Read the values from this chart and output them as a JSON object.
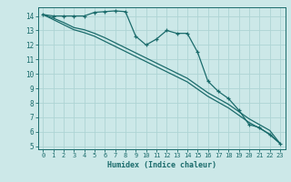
{
  "title": "",
  "xlabel": "Humidex (Indice chaleur)",
  "ylabel": "",
  "background_color": "#cce8e8",
  "grid_color": "#aed4d4",
  "line_color": "#1a6b6b",
  "xlim": [
    -0.5,
    23.5
  ],
  "ylim": [
    4.8,
    14.6
  ],
  "xticks": [
    0,
    1,
    2,
    3,
    4,
    5,
    6,
    7,
    8,
    9,
    10,
    11,
    12,
    13,
    14,
    15,
    16,
    17,
    18,
    19,
    20,
    21,
    22,
    23
  ],
  "yticks": [
    5,
    6,
    7,
    8,
    9,
    10,
    11,
    12,
    13,
    14
  ],
  "line1_x": [
    0,
    1,
    2,
    3,
    4,
    5,
    6,
    7,
    8,
    9,
    10,
    11,
    12,
    13,
    14,
    15,
    16,
    17,
    18,
    19,
    20,
    21,
    22,
    23
  ],
  "line1_y": [
    14.1,
    14.0,
    14.0,
    14.0,
    14.0,
    14.25,
    14.3,
    14.35,
    14.3,
    12.6,
    12.0,
    12.4,
    13.0,
    12.8,
    12.8,
    11.5,
    9.5,
    8.8,
    8.3,
    7.5,
    6.5,
    6.3,
    5.8,
    5.2
  ],
  "line2_x": [
    0,
    1,
    2,
    3,
    4,
    5,
    6,
    7,
    8,
    9,
    10,
    11,
    12,
    13,
    14,
    15,
    16,
    17,
    18,
    19,
    20,
    21,
    22,
    23
  ],
  "line2_y": [
    14.1,
    13.85,
    13.55,
    13.2,
    13.05,
    12.8,
    12.5,
    12.15,
    11.8,
    11.45,
    11.1,
    10.75,
    10.4,
    10.05,
    9.7,
    9.2,
    8.7,
    8.3,
    7.9,
    7.4,
    6.9,
    6.5,
    6.1,
    5.2
  ],
  "line3_x": [
    0,
    1,
    2,
    3,
    4,
    5,
    6,
    7,
    8,
    9,
    10,
    11,
    12,
    13,
    14,
    15,
    16,
    17,
    18,
    19,
    20,
    21,
    22,
    23
  ],
  "line3_y": [
    14.1,
    13.75,
    13.4,
    13.05,
    12.85,
    12.6,
    12.25,
    11.9,
    11.55,
    11.2,
    10.85,
    10.5,
    10.15,
    9.8,
    9.45,
    8.95,
    8.45,
    8.05,
    7.65,
    7.15,
    6.65,
    6.25,
    5.85,
    5.2
  ]
}
